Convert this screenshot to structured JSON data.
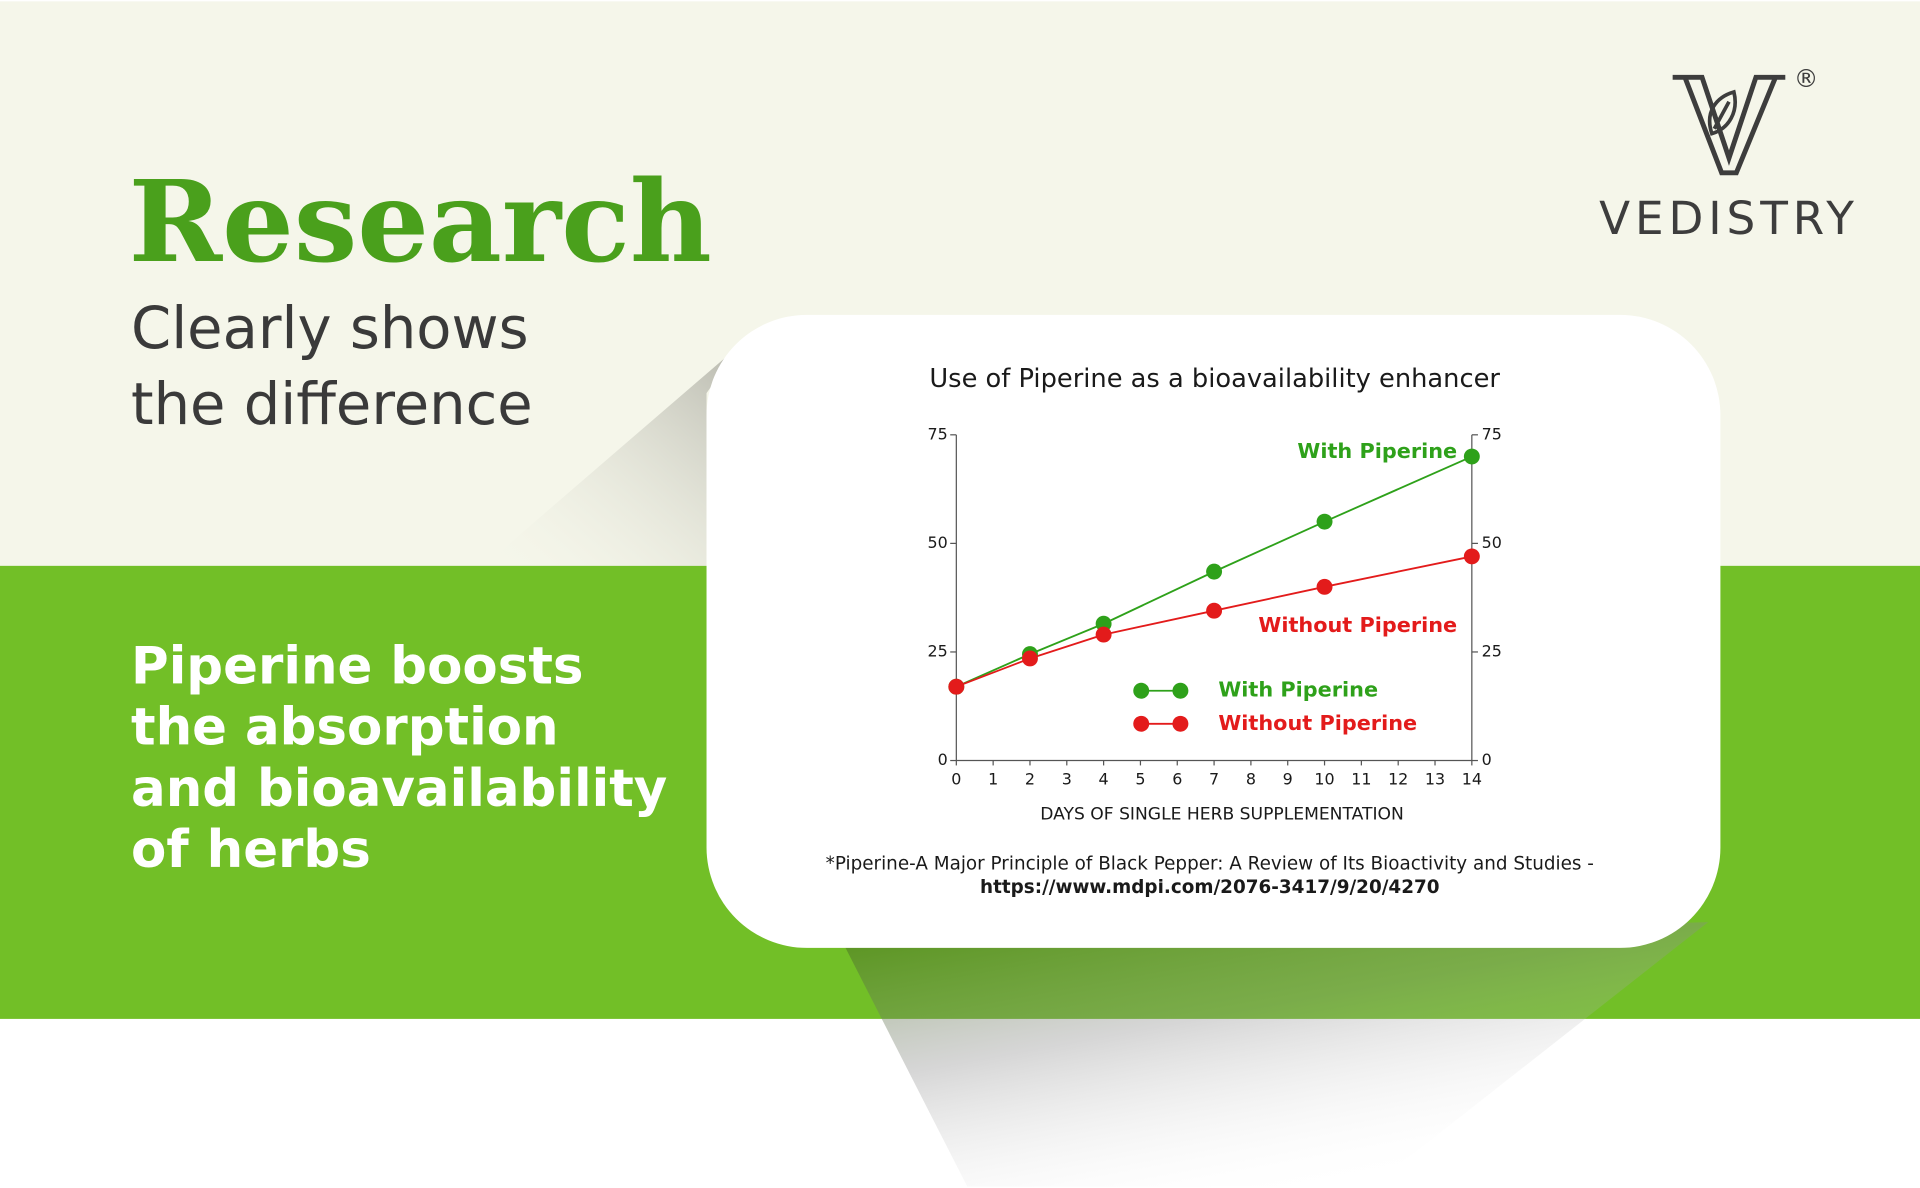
{
  "header": {
    "title": "Research",
    "subtitle_lines": [
      "Clearly shows",
      "the difference"
    ]
  },
  "body": {
    "lines": [
      "Piperine boosts",
      "the absorption",
      "and bioavailability",
      "of herbs"
    ]
  },
  "logo": {
    "brand": "VEDISTRY",
    "mark": "®"
  },
  "chart_data": {
    "type": "line",
    "title": "Use of Piperine as a bioavailability enhancer",
    "x_label": "DAYS OF SINGLE HERB SUPPLEMENTATION",
    "x": [
      0,
      2,
      4,
      7,
      10,
      14
    ],
    "series": [
      {
        "name": "With Piperine",
        "color": "#2ea11a",
        "values": [
          17,
          24.5,
          31.5,
          43.5,
          55,
          70
        ]
      },
      {
        "name": "Without Piperine",
        "color": "#e31b1b",
        "values": [
          17,
          23.5,
          29,
          34.5,
          40,
          47
        ]
      }
    ],
    "xlim": [
      0,
      14
    ],
    "xticks": [
      0,
      1,
      2,
      3,
      4,
      5,
      6,
      7,
      8,
      9,
      10,
      11,
      12,
      13,
      14
    ],
    "ylim": [
      0,
      75
    ],
    "yticks": [
      0,
      25,
      50,
      75
    ],
    "y2lim": [
      0,
      75
    ],
    "y2ticks": [
      0,
      25,
      50,
      75
    ]
  },
  "citation": {
    "text": "*Piperine-A Major Principle of Black Pepper: A Review of Its Bioactivity and Studies -",
    "url": "https://www.mdpi.com/2076-3417/9/20/4270"
  }
}
